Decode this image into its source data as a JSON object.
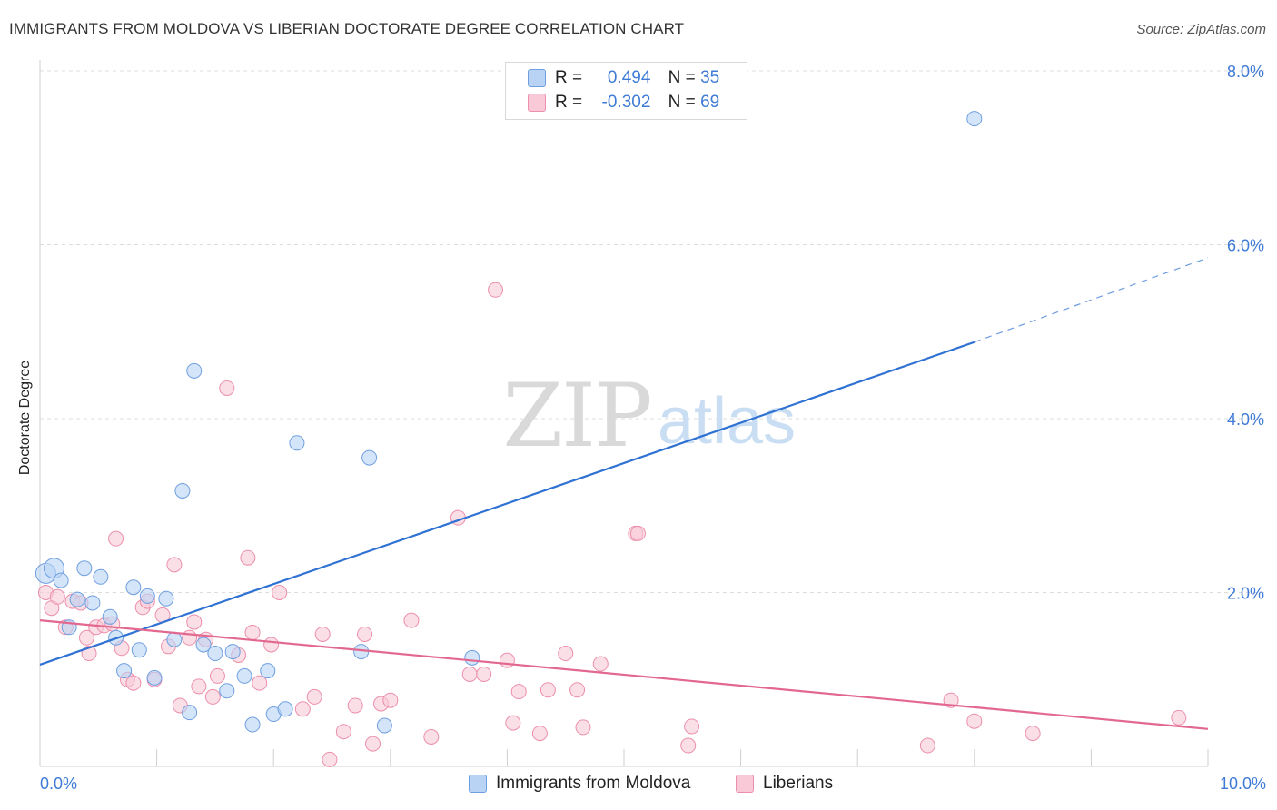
{
  "header": {
    "title": "IMMIGRANTS FROM MOLDOVA VS LIBERIAN DOCTORATE DEGREE CORRELATION CHART",
    "source": "Source: ZipAtlas.com"
  },
  "watermark": {
    "zip": "ZIP",
    "atlas": "atlas"
  },
  "legend": {
    "r_label": "R =",
    "n_label": "N =",
    "series": [
      {
        "name": "Immigrants from Moldova",
        "r": "0.494",
        "n": "35",
        "fill": "#b9d3f5",
        "stroke": "#6f9fe0"
      },
      {
        "name": "Liberians",
        "r": "-0.302",
        "n": "69",
        "fill": "#f9c9d7",
        "stroke": "#ec8fab"
      }
    ]
  },
  "chart_data": {
    "type": "scatter",
    "title": "IMMIGRANTS FROM MOLDOVA VS LIBERIAN DOCTORATE DEGREE CORRELATION CHART",
    "xlabel": "",
    "ylabel": "Doctorate Degree",
    "xlim": [
      0,
      10
    ],
    "ylim": [
      0,
      8
    ],
    "x_tick_labels": [
      "0.0%",
      "10.0%"
    ],
    "y_ticks": [
      2,
      4,
      6,
      8
    ],
    "y_tick_labels": [
      "2.0%",
      "4.0%",
      "6.0%",
      "8.0%"
    ],
    "grid": true,
    "colors": {
      "blue": "#2f72d3",
      "pink": "#e2688f",
      "blue_fill": "#b9d3f5",
      "pink_fill": "#f9c9d7"
    },
    "series": [
      {
        "name": "Immigrants from Moldova",
        "r": 0.494,
        "n": 35,
        "trend": {
          "x0": 0,
          "y0": 1.17,
          "x1": 8.0,
          "y1": 4.88,
          "dash_to_x": 10,
          "dash_to_y": 5.85
        },
        "points": [
          [
            0.05,
            2.22
          ],
          [
            0.12,
            2.28
          ],
          [
            0.18,
            2.14
          ],
          [
            0.25,
            1.6
          ],
          [
            0.32,
            1.92
          ],
          [
            0.38,
            2.28
          ],
          [
            0.45,
            1.88
          ],
          [
            0.52,
            2.18
          ],
          [
            0.6,
            1.72
          ],
          [
            0.65,
            1.48
          ],
          [
            0.72,
            1.1
          ],
          [
            0.8,
            2.06
          ],
          [
            0.85,
            1.34
          ],
          [
            0.92,
            1.96
          ],
          [
            0.98,
            1.02
          ],
          [
            1.08,
            1.93
          ],
          [
            1.15,
            1.46
          ],
          [
            1.22,
            3.17
          ],
          [
            1.28,
            0.62
          ],
          [
            1.32,
            4.55
          ],
          [
            1.4,
            1.4
          ],
          [
            1.5,
            1.3
          ],
          [
            1.6,
            0.87
          ],
          [
            1.65,
            1.32
          ],
          [
            1.75,
            1.04
          ],
          [
            1.82,
            0.48
          ],
          [
            1.95,
            1.1
          ],
          [
            2.0,
            0.6
          ],
          [
            2.1,
            0.66
          ],
          [
            2.2,
            3.72
          ],
          [
            2.75,
            1.32
          ],
          [
            2.82,
            3.55
          ],
          [
            2.95,
            0.47
          ],
          [
            3.7,
            1.25
          ],
          [
            8.0,
            7.45
          ]
        ]
      },
      {
        "name": "Liberians",
        "r": -0.302,
        "n": 69,
        "trend": {
          "x0": 0,
          "y0": 1.68,
          "x1": 10,
          "y1": 0.43
        },
        "points": [
          [
            0.05,
            2.0
          ],
          [
            0.1,
            1.82
          ],
          [
            0.15,
            1.95
          ],
          [
            0.22,
            1.6
          ],
          [
            0.28,
            1.9
          ],
          [
            0.35,
            1.88
          ],
          [
            0.4,
            1.48
          ],
          [
            0.42,
            1.3
          ],
          [
            0.48,
            1.6
          ],
          [
            0.55,
            1.62
          ],
          [
            0.62,
            1.64
          ],
          [
            0.65,
            2.62
          ],
          [
            0.7,
            1.36
          ],
          [
            0.75,
            1.0
          ],
          [
            0.8,
            0.96
          ],
          [
            0.88,
            1.83
          ],
          [
            0.92,
            1.9
          ],
          [
            0.98,
            1.0
          ],
          [
            1.05,
            1.74
          ],
          [
            1.1,
            1.38
          ],
          [
            1.15,
            2.32
          ],
          [
            1.2,
            0.7
          ],
          [
            1.28,
            1.48
          ],
          [
            1.32,
            1.66
          ],
          [
            1.36,
            0.92
          ],
          [
            1.42,
            1.46
          ],
          [
            1.48,
            0.8
          ],
          [
            1.52,
            1.04
          ],
          [
            1.6,
            4.35
          ],
          [
            1.7,
            1.28
          ],
          [
            1.78,
            2.4
          ],
          [
            1.82,
            1.54
          ],
          [
            1.88,
            0.96
          ],
          [
            1.98,
            1.4
          ],
          [
            2.05,
            2.0
          ],
          [
            2.25,
            0.66
          ],
          [
            2.35,
            0.8
          ],
          [
            2.42,
            1.52
          ],
          [
            2.48,
            0.08
          ],
          [
            2.6,
            0.4
          ],
          [
            2.7,
            0.7
          ],
          [
            2.78,
            1.52
          ],
          [
            2.85,
            0.26
          ],
          [
            2.92,
            0.72
          ],
          [
            3.0,
            0.76
          ],
          [
            3.18,
            1.68
          ],
          [
            3.35,
            0.34
          ],
          [
            3.58,
            2.86
          ],
          [
            3.68,
            1.06
          ],
          [
            3.8,
            1.06
          ],
          [
            3.9,
            5.48
          ],
          [
            4.0,
            1.22
          ],
          [
            4.05,
            0.5
          ],
          [
            4.1,
            0.86
          ],
          [
            4.28,
            0.38
          ],
          [
            4.35,
            0.88
          ],
          [
            4.5,
            1.3
          ],
          [
            4.6,
            0.88
          ],
          [
            4.65,
            0.45
          ],
          [
            4.8,
            1.18
          ],
          [
            5.1,
            2.68
          ],
          [
            5.12,
            2.68
          ],
          [
            5.55,
            0.24
          ],
          [
            5.58,
            0.46
          ],
          [
            7.6,
            0.24
          ],
          [
            7.8,
            0.76
          ],
          [
            8.0,
            0.52
          ],
          [
            8.5,
            0.38
          ],
          [
            9.75,
            0.56
          ]
        ]
      }
    ]
  }
}
